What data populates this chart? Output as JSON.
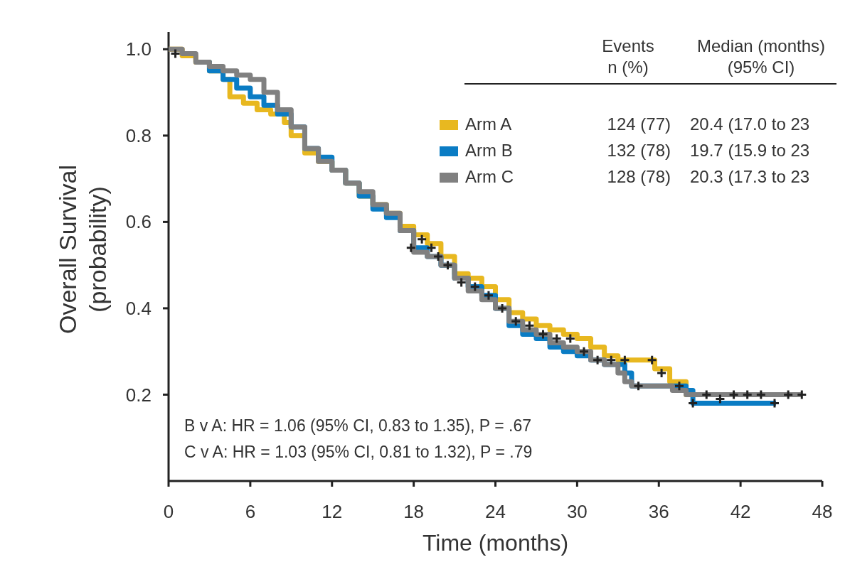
{
  "chart_data": {
    "type": "step",
    "xlabel": "Time (months)",
    "ylabel": "Overall Survival\n(probability)",
    "xlim": [
      0,
      48
    ],
    "xticks": [
      0,
      6,
      12,
      18,
      24,
      30,
      36,
      42,
      48
    ],
    "ylim": [
      0,
      1.04
    ],
    "yticks": [
      0.2,
      0.4,
      0.6,
      0.8,
      {
        "value": 1,
        "label": "1.0"
      }
    ],
    "grid": false,
    "legend": "top right",
    "line_style": "solid",
    "marker": "none",
    "series": [
      {
        "name": "Arm A",
        "color": "#e8b820",
        "x": [
          0,
          1,
          2,
          3,
          4,
          4.5,
          5.5,
          6.5,
          7.5,
          8.5,
          9,
          10,
          11,
          12,
          13,
          14,
          15,
          16,
          17,
          18,
          19,
          20,
          21,
          22,
          23,
          24,
          25,
          26,
          27,
          28,
          29,
          30,
          31,
          32,
          33,
          35.7,
          36.8,
          38,
          45.9
        ],
        "values": [
          1.0,
          0.985,
          0.97,
          0.95,
          0.93,
          0.89,
          0.875,
          0.86,
          0.85,
          0.83,
          0.8,
          0.76,
          0.74,
          0.72,
          0.69,
          0.66,
          0.64,
          0.62,
          0.59,
          0.57,
          0.55,
          0.52,
          0.48,
          0.47,
          0.45,
          0.42,
          0.39,
          0.375,
          0.36,
          0.35,
          0.34,
          0.33,
          0.31,
          0.29,
          0.28,
          0.26,
          0.23,
          0.2,
          0.2
        ]
      },
      {
        "name": "Arm B",
        "color": "#0a7cc4",
        "x": [
          2,
          3,
          4,
          5,
          6,
          7,
          8,
          9,
          10,
          11,
          12,
          13,
          14,
          15,
          16,
          17,
          18,
          19,
          20,
          21,
          22,
          23,
          24,
          25,
          26,
          27,
          28,
          29,
          30,
          31,
          32,
          33.5,
          34,
          38,
          38.5,
          44.6
        ],
        "values": [
          0.97,
          0.95,
          0.93,
          0.91,
          0.89,
          0.87,
          0.85,
          0.82,
          0.77,
          0.75,
          0.72,
          0.69,
          0.66,
          0.63,
          0.61,
          0.58,
          0.54,
          0.52,
          0.5,
          0.47,
          0.45,
          0.43,
          0.4,
          0.36,
          0.34,
          0.33,
          0.31,
          0.3,
          0.29,
          0.28,
          0.27,
          0.25,
          0.22,
          0.21,
          0.18,
          0.18
        ]
      },
      {
        "name": "Arm C",
        "color": "#808080",
        "x": [
          0,
          1,
          2,
          3,
          4,
          5,
          6,
          7,
          8,
          9,
          10,
          11,
          12,
          13,
          14,
          15,
          16,
          17,
          18,
          19,
          20,
          21,
          22,
          23,
          24,
          25,
          26,
          27,
          28,
          29,
          30,
          31,
          32,
          33,
          33.5,
          34,
          36,
          37,
          38,
          46.5
        ],
        "values": [
          1.0,
          0.99,
          0.97,
          0.96,
          0.95,
          0.94,
          0.93,
          0.9,
          0.86,
          0.82,
          0.77,
          0.74,
          0.72,
          0.69,
          0.67,
          0.64,
          0.62,
          0.58,
          0.53,
          0.52,
          0.5,
          0.47,
          0.44,
          0.42,
          0.4,
          0.37,
          0.35,
          0.34,
          0.32,
          0.31,
          0.3,
          0.28,
          0.27,
          0.25,
          0.23,
          0.22,
          0.22,
          0.21,
          0.2,
          0.2
        ]
      },
      {
        "type": "scatter",
        "color": "#222222",
        "marker": "cross",
        "x": [
          0.5,
          17.8,
          18.6,
          19.3,
          19.8,
          20.5,
          21.5,
          22.5,
          23.5,
          24.5,
          25.5,
          26.5,
          27.5,
          28.5,
          29.5,
          30.5,
          31.5,
          32.5,
          33.5,
          34.5,
          35.5,
          36.2,
          37.5,
          38.5,
          39.5,
          40.5,
          41.5,
          42.5,
          43.5,
          44.5,
          45.5,
          46.5
        ],
        "values": [
          0.99,
          0.54,
          0.56,
          0.54,
          0.52,
          0.5,
          0.46,
          0.45,
          0.43,
          0.4,
          0.37,
          0.36,
          0.34,
          0.33,
          0.33,
          0.3,
          0.28,
          0.28,
          0.28,
          0.22,
          0.28,
          0.25,
          0.22,
          0.18,
          0.2,
          0.19,
          0.2,
          0.2,
          0.2,
          0.18,
          0.2,
          0.2
        ]
      }
    ],
    "annotations": [
      "Events\nn (%)",
      "Median (months)\n(95% CI)",
      "124 (77)",
      "20.4 (17.0 to 23",
      "132 (78)",
      "19.7 (15.9 to 23",
      "128 (78)",
      "20.3 (17.3 to 23",
      "B v A: HR = 1.06 (95% CI, 0.83 to 1.35), P = .67",
      "C v A: HR = 1.03 (95% CI, 0.81 to 1.32), P = .79"
    ]
  }
}
